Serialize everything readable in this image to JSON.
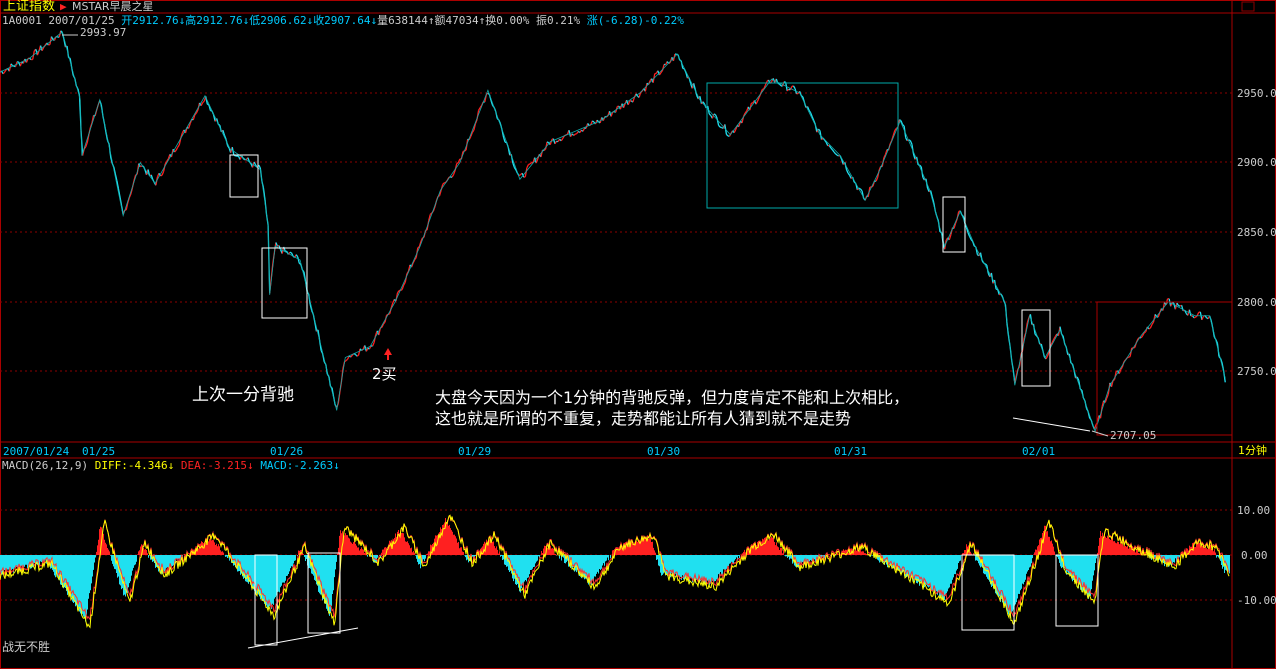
{
  "header": {
    "index_name": "上证指数",
    "indicator_name": "MSTAR早晨之星",
    "code": "1A0001",
    "date": "2007/01/25",
    "open": "开2912.76↓",
    "high": "高2912.76↓",
    "low": "低2906.62↓",
    "close": "收2907.64↓",
    "volume": "量638144↑",
    "amount": "额47034↑",
    "turnover": "换0.00%",
    "amplitude": "振0.21%",
    "change": "涨(-6.28)-0.22%"
  },
  "price_axis": [
    "2950.0",
    "2900.0",
    "2850.0",
    "2800.0",
    "2750.0"
  ],
  "time_axis": [
    "2007/01/24",
    "01/25",
    "01/26",
    "01/29",
    "01/30",
    "01/31",
    "02/01"
  ],
  "period": "1分钟",
  "markers": {
    "high": "2993.97",
    "low": "2707.05"
  },
  "annotations": {
    "prev_divergence": "上次一分背驰",
    "second_buy": "2买",
    "note_line1": "大盘今天因为一个1分钟的背驰反弹，但力度肯定不能和上次相比，",
    "note_line2": "这也就是所谓的不重复，走势都能让所有人猜到就不是走势",
    "signature": "战无不胜"
  },
  "macd": {
    "label": "MACD(26,12,9)",
    "diff": "DIFF:-4.346↓",
    "dea": "DEA:-3.215↓",
    "macd": "MACD:-2.263↓",
    "axis": [
      "10.00",
      "0.00",
      "-10.00"
    ]
  },
  "colors": {
    "up": "#ff2020",
    "down": "#20e0f0",
    "diff": "#ffff00",
    "dea": "#ff3030",
    "grid": "#8b0000"
  },
  "chart_data": {
    "type": "line",
    "x_unit": "minutes from start",
    "price_keypoints": [
      [
        0,
        2965
      ],
      [
        38,
        2975
      ],
      [
        80,
        2993.97
      ],
      [
        103,
        2945
      ],
      [
        105,
        2905
      ],
      [
        128,
        2945
      ],
      [
        158,
        2862
      ],
      [
        180,
        2900
      ],
      [
        199,
        2885
      ],
      [
        263,
        2948
      ],
      [
        295,
        2910
      ],
      [
        334,
        2895
      ],
      [
        344,
        2855
      ],
      [
        346,
        2805
      ],
      [
        353,
        2840
      ],
      [
        385,
        2830
      ],
      [
        398,
        2800
      ],
      [
        432,
        2722
      ],
      [
        443,
        2760
      ],
      [
        475,
        2768
      ],
      [
        507,
        2800
      ],
      [
        539,
        2840
      ],
      [
        565,
        2880
      ],
      [
        590,
        2900
      ],
      [
        626,
        2952
      ],
      [
        667,
        2888
      ],
      [
        706,
        2915
      ],
      [
        770,
        2930
      ],
      [
        821,
        2950
      ],
      [
        869,
        2978
      ],
      [
        898,
        2945
      ],
      [
        937,
        2920
      ],
      [
        990,
        2960
      ],
      [
        1026,
        2950
      ],
      [
        1052,
        2920
      ],
      [
        1078,
        2905
      ],
      [
        1110,
        2873
      ],
      [
        1129,
        2895
      ],
      [
        1155,
        2930
      ],
      [
        1193,
        2880
      ],
      [
        1212,
        2840
      ],
      [
        1232,
        2865
      ],
      [
        1251,
        2840
      ],
      [
        1289,
        2800
      ],
      [
        1302,
        2740
      ],
      [
        1321,
        2790
      ],
      [
        1341,
        2760
      ],
      [
        1360,
        2780
      ],
      [
        1405,
        2707.05
      ],
      [
        1424,
        2740
      ],
      [
        1463,
        2775
      ],
      [
        1499,
        2800
      ],
      [
        1533,
        2790
      ],
      [
        1552,
        2790
      ],
      [
        1572,
        2745
      ]
    ],
    "macd_keypoints": [
      [
        0,
        -5
      ],
      [
        60,
        -2
      ],
      [
        109,
        -18
      ],
      [
        128,
        8
      ],
      [
        160,
        -12
      ],
      [
        180,
        3
      ],
      [
        205,
        -5
      ],
      [
        270,
        5
      ],
      [
        300,
        -3
      ],
      [
        346,
        -15
      ],
      [
        385,
        2
      ],
      [
        423,
        -17
      ],
      [
        436,
        7
      ],
      [
        480,
        -2
      ],
      [
        513,
        7
      ],
      [
        539,
        -3
      ],
      [
        571,
        10
      ],
      [
        600,
        -2
      ],
      [
        629,
        5
      ],
      [
        667,
        -10
      ],
      [
        700,
        3
      ],
      [
        757,
        -8
      ],
      [
        790,
        2
      ],
      [
        834,
        5
      ],
      [
        847,
        -5
      ],
      [
        911,
        -8
      ],
      [
        960,
        2
      ],
      [
        988,
        5
      ],
      [
        1020,
        -3
      ],
      [
        1100,
        2
      ],
      [
        1212,
        -12
      ],
      [
        1240,
        3
      ],
      [
        1296,
        -17
      ],
      [
        1340,
        8
      ],
      [
        1360,
        -3
      ],
      [
        1398,
        -12
      ],
      [
        1411,
        6
      ],
      [
        1450,
        2
      ],
      [
        1500,
        -3
      ],
      [
        1530,
        3
      ],
      [
        1555,
        2
      ],
      [
        1572,
        -5
      ]
    ],
    "price_range": [
      2700,
      3000
    ],
    "macd_range": [
      -20,
      20
    ]
  }
}
